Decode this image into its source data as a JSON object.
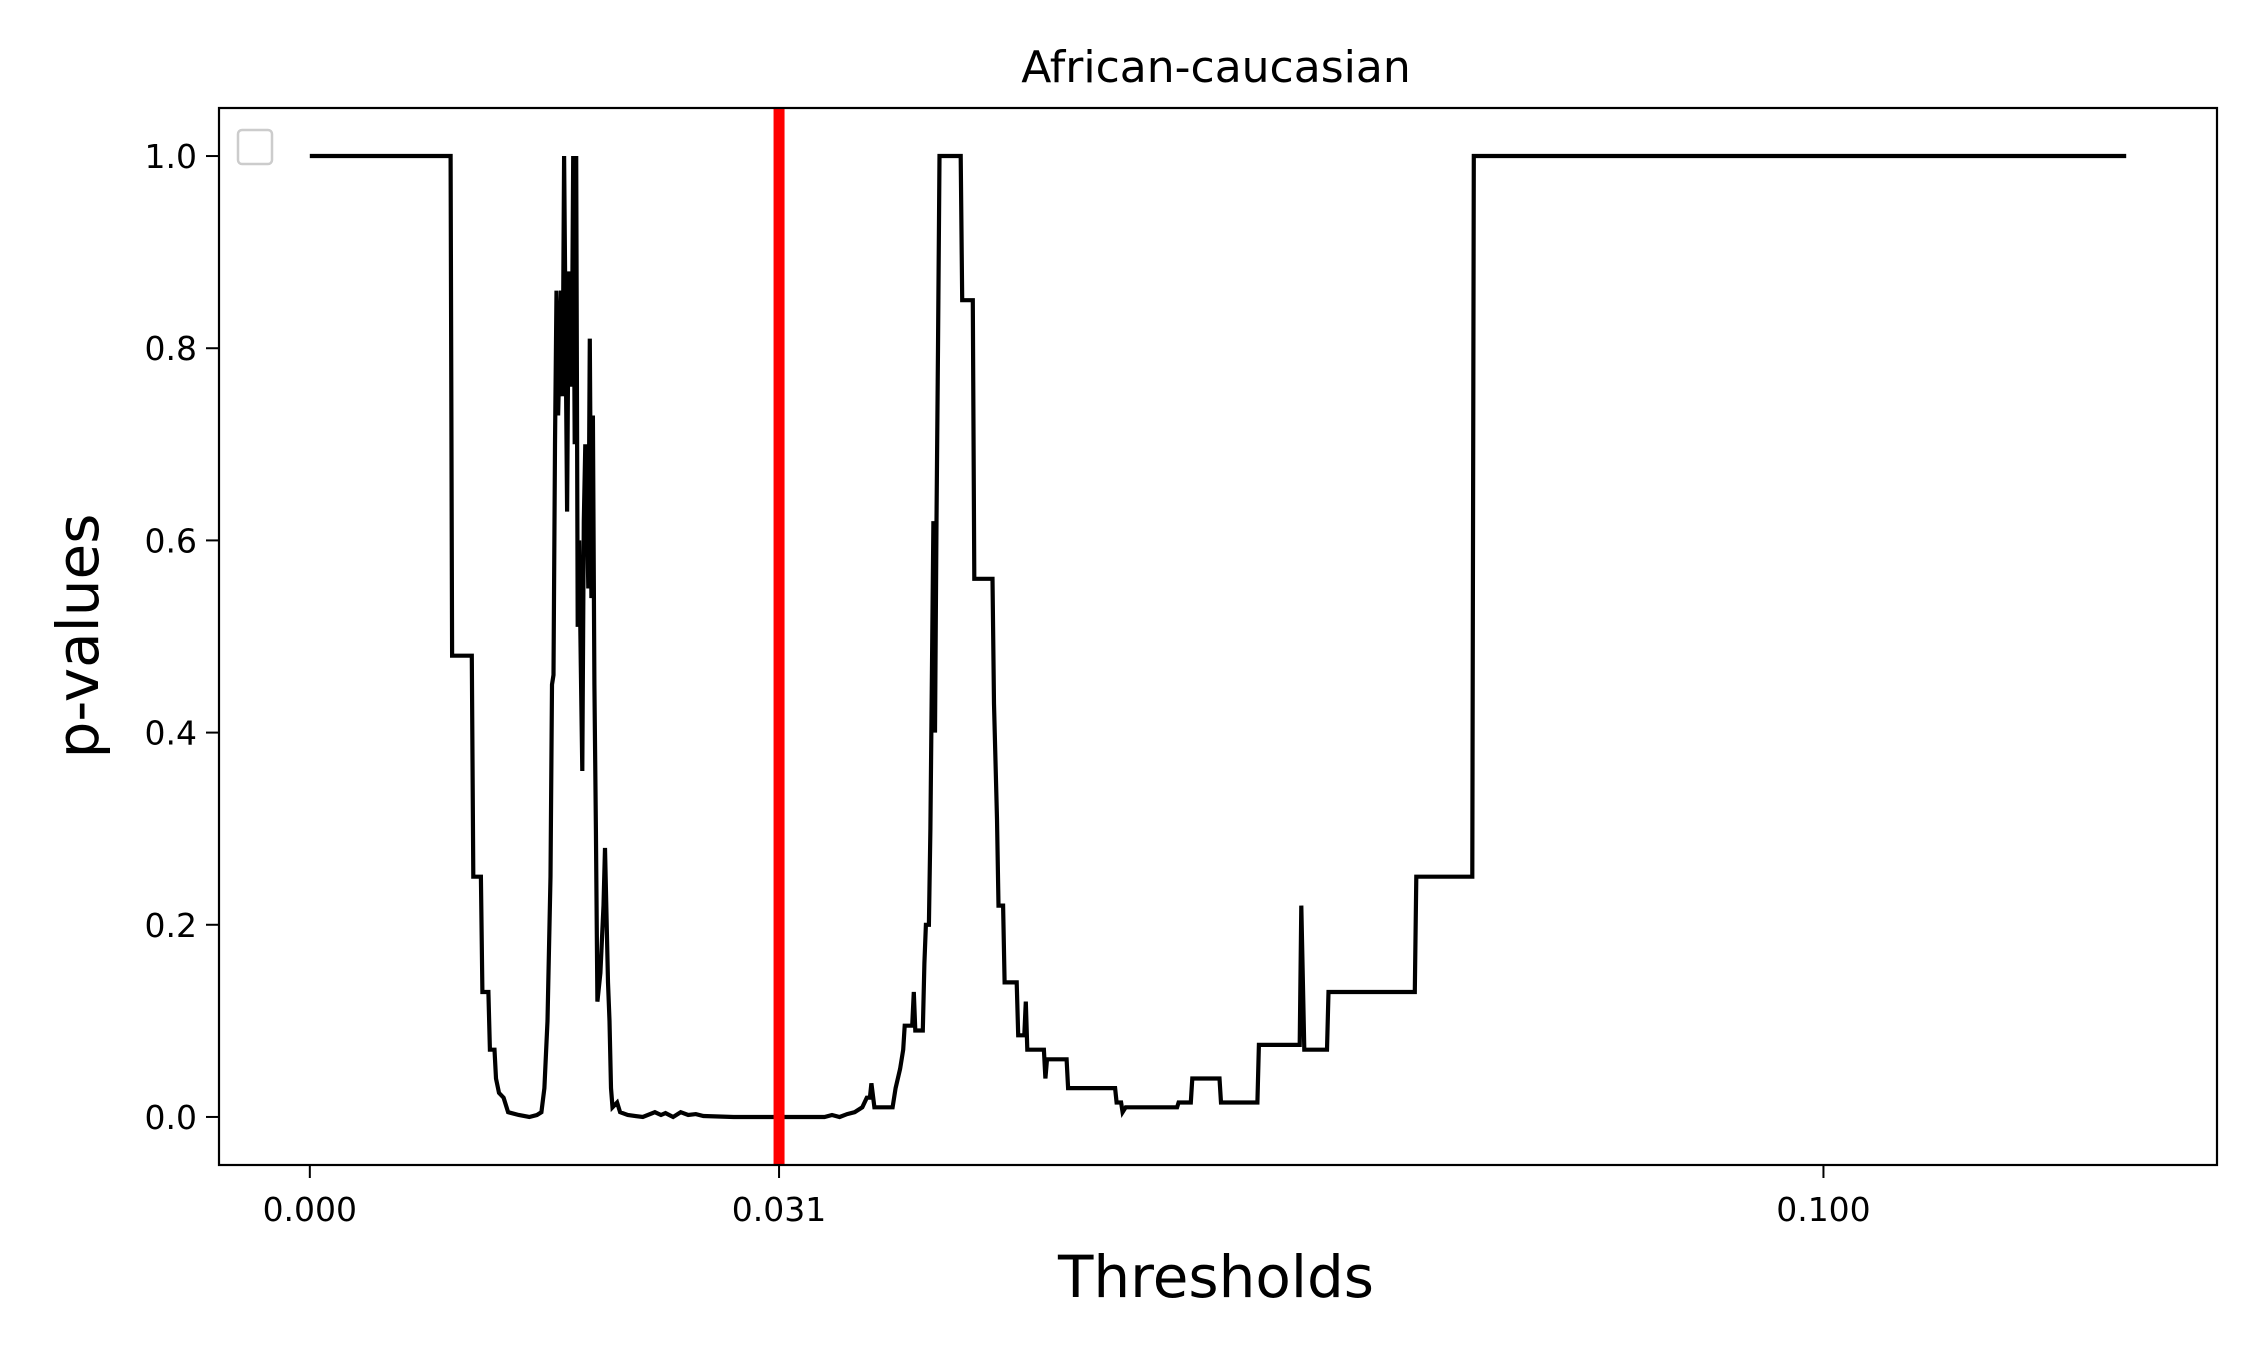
{
  "chart_data": {
    "type": "line",
    "title": "African-caucasian",
    "xlabel": "Thresholds",
    "ylabel": "p-values",
    "xlim": [
      -0.006,
      0.126
    ],
    "ylim": [
      -0.05,
      1.05
    ],
    "x_ticks": [
      0.0,
      0.031,
      0.1
    ],
    "x_tick_labels": [
      "0.000",
      "0.031",
      "0.100"
    ],
    "y_ticks": [
      0.0,
      0.2,
      0.4,
      0.6,
      0.8,
      1.0
    ],
    "y_tick_labels": [
      "0.0",
      "0.2",
      "0.4",
      "0.6",
      "0.8",
      "1.0"
    ],
    "grid": false,
    "legend": {
      "placement": "top-left",
      "entries": []
    },
    "threshold_line": {
      "x": 0.031,
      "color": "#ff0000"
    },
    "line_color": "#000000",
    "series": [
      {
        "values": [
          [
            0.0,
            1.0
          ],
          [
            0.0093,
            1.0
          ],
          [
            0.0094,
            0.48
          ],
          [
            0.0107,
            0.48
          ],
          [
            0.0108,
            0.25
          ],
          [
            0.0113,
            0.25
          ],
          [
            0.0114,
            0.13
          ],
          [
            0.0118,
            0.13
          ],
          [
            0.0119,
            0.07
          ],
          [
            0.0122,
            0.07
          ],
          [
            0.0123,
            0.04
          ],
          [
            0.0125,
            0.025
          ],
          [
            0.0128,
            0.02
          ],
          [
            0.0131,
            0.005
          ],
          [
            0.0138,
            0.002
          ],
          [
            0.0145,
            0.0
          ],
          [
            0.015,
            0.002
          ],
          [
            0.0153,
            0.005
          ],
          [
            0.0155,
            0.03
          ],
          [
            0.0157,
            0.1
          ],
          [
            0.0159,
            0.25
          ],
          [
            0.016,
            0.45
          ],
          [
            0.0161,
            0.46
          ],
          [
            0.0162,
            0.7
          ],
          [
            0.0163,
            0.86
          ],
          [
            0.0164,
            0.73
          ],
          [
            0.0166,
            0.86
          ],
          [
            0.0167,
            0.75
          ],
          [
            0.0168,
            1.0
          ],
          [
            0.017,
            0.63
          ],
          [
            0.0171,
            0.88
          ],
          [
            0.0173,
            0.76
          ],
          [
            0.0174,
            1.0
          ],
          [
            0.0175,
            0.7
          ],
          [
            0.0176,
            1.0
          ],
          [
            0.0177,
            0.51
          ],
          [
            0.0178,
            0.6
          ],
          [
            0.0179,
            0.47
          ],
          [
            0.018,
            0.36
          ],
          [
            0.0181,
            0.62
          ],
          [
            0.0182,
            0.7
          ],
          [
            0.0183,
            0.65
          ],
          [
            0.0184,
            0.55
          ],
          [
            0.0185,
            0.81
          ],
          [
            0.0186,
            0.54
          ],
          [
            0.0187,
            0.73
          ],
          [
            0.0188,
            0.45
          ],
          [
            0.0189,
            0.3
          ],
          [
            0.019,
            0.12
          ],
          [
            0.0192,
            0.15
          ],
          [
            0.0194,
            0.22
          ],
          [
            0.0195,
            0.28
          ],
          [
            0.0197,
            0.14
          ],
          [
            0.0198,
            0.1
          ],
          [
            0.0199,
            0.03
          ],
          [
            0.02,
            0.01
          ],
          [
            0.0203,
            0.015
          ],
          [
            0.0205,
            0.005
          ],
          [
            0.021,
            0.002
          ],
          [
            0.022,
            0.0
          ],
          [
            0.0228,
            0.005
          ],
          [
            0.0232,
            0.002
          ],
          [
            0.0235,
            0.004
          ],
          [
            0.024,
            0.0
          ],
          [
            0.0245,
            0.005
          ],
          [
            0.025,
            0.002
          ],
          [
            0.0255,
            0.003
          ],
          [
            0.026,
            0.001
          ],
          [
            0.028,
            0.0
          ],
          [
            0.031,
            0.0
          ],
          [
            0.034,
            0.0
          ],
          [
            0.0345,
            0.002
          ],
          [
            0.035,
            0.0
          ],
          [
            0.0355,
            0.003
          ],
          [
            0.036,
            0.005
          ],
          [
            0.0365,
            0.01
          ],
          [
            0.0368,
            0.02
          ],
          [
            0.037,
            0.02
          ],
          [
            0.0371,
            0.035
          ],
          [
            0.0373,
            0.01
          ],
          [
            0.0385,
            0.01
          ],
          [
            0.0387,
            0.03
          ],
          [
            0.039,
            0.05
          ],
          [
            0.0392,
            0.07
          ],
          [
            0.0393,
            0.095
          ],
          [
            0.0398,
            0.095
          ],
          [
            0.0399,
            0.13
          ],
          [
            0.04,
            0.09
          ],
          [
            0.0405,
            0.09
          ],
          [
            0.0406,
            0.16
          ],
          [
            0.0407,
            0.2
          ],
          [
            0.0409,
            0.2
          ],
          [
            0.041,
            0.3
          ],
          [
            0.0412,
            0.62
          ],
          [
            0.0413,
            0.4
          ],
          [
            0.0414,
            0.62
          ],
          [
            0.0415,
            0.8
          ],
          [
            0.0416,
            1.0
          ],
          [
            0.043,
            1.0
          ],
          [
            0.0431,
            0.85
          ],
          [
            0.0438,
            0.85
          ],
          [
            0.0439,
            0.56
          ],
          [
            0.0451,
            0.56
          ],
          [
            0.0452,
            0.43
          ],
          [
            0.0454,
            0.31
          ],
          [
            0.0455,
            0.22
          ],
          [
            0.0458,
            0.22
          ],
          [
            0.0459,
            0.14
          ],
          [
            0.0467,
            0.14
          ],
          [
            0.0468,
            0.085
          ],
          [
            0.0472,
            0.085
          ],
          [
            0.0473,
            0.12
          ],
          [
            0.0474,
            0.07
          ],
          [
            0.0485,
            0.07
          ],
          [
            0.0486,
            0.04
          ],
          [
            0.0487,
            0.06
          ],
          [
            0.05,
            0.06
          ],
          [
            0.0501,
            0.03
          ],
          [
            0.0532,
            0.03
          ],
          [
            0.0533,
            0.015
          ],
          [
            0.0536,
            0.015
          ],
          [
            0.0537,
            0.005
          ],
          [
            0.0539,
            0.01
          ],
          [
            0.0573,
            0.01
          ],
          [
            0.0574,
            0.015
          ],
          [
            0.0582,
            0.015
          ],
          [
            0.0583,
            0.04
          ],
          [
            0.0601,
            0.04
          ],
          [
            0.0602,
            0.015
          ],
          [
            0.0626,
            0.015
          ],
          [
            0.0627,
            0.075
          ],
          [
            0.0654,
            0.075
          ],
          [
            0.0655,
            0.22
          ],
          [
            0.0657,
            0.07
          ],
          [
            0.0672,
            0.07
          ],
          [
            0.0673,
            0.13
          ],
          [
            0.073,
            0.13
          ],
          [
            0.0731,
            0.25
          ],
          [
            0.0768,
            0.25
          ],
          [
            0.0769,
            1.0
          ],
          [
            0.12,
            1.0
          ]
        ]
      }
    ]
  }
}
